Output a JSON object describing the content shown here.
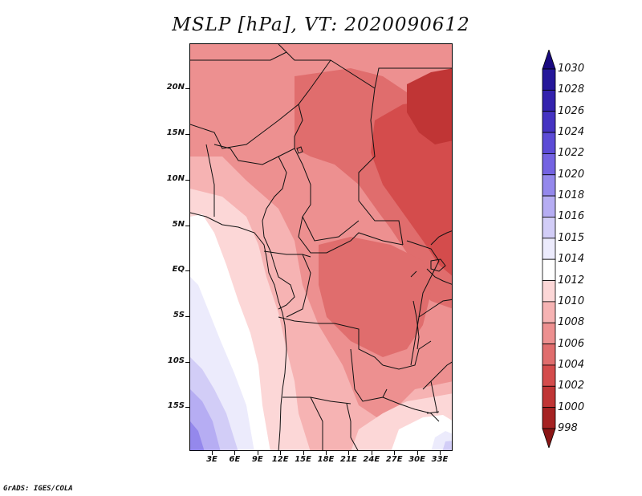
{
  "title": "MSLP [hPa], VT: 2020090612",
  "credit": "GrADS: IGES/COLA",
  "lat_ticks": [
    "20N",
    "15N",
    "10N",
    "5N",
    "EQ",
    "5S",
    "10S",
    "15S"
  ],
  "lon_ticks": [
    "3E",
    "6E",
    "9E",
    "12E",
    "15E",
    "18E",
    "21E",
    "24E",
    "27E",
    "30E",
    "33E"
  ],
  "colorbar": {
    "levels": [
      "1030",
      "1028",
      "1026",
      "1024",
      "1022",
      "1020",
      "1018",
      "1016",
      "1015",
      "1014",
      "1012",
      "1010",
      "1008",
      "1006",
      "1004",
      "1002",
      "1000",
      "998"
    ],
    "colors": [
      "#1a0a80",
      "#25179a",
      "#3322ae",
      "#4533c2",
      "#5c4bd6",
      "#7463e2",
      "#9488ec",
      "#b6adf3",
      "#d2cdf7",
      "#ecebfc",
      "#ffffff",
      "#fcd7d7",
      "#f6b3b3",
      "#ed9090",
      "#e06d6d",
      "#d44c4c",
      "#c03535",
      "#a52222",
      "#8a1515"
    ]
  },
  "field_colors": {
    "c998": "#a52222",
    "c1000": "#c03535",
    "c1002": "#d44c4c",
    "c1004": "#e06d6d",
    "c1006": "#ed9090",
    "c1008": "#f6b3b3",
    "c1010": "#fcd7d7",
    "c1012": "#ffffff",
    "c1014": "#ecebfc",
    "c1015": "#d2cdf7",
    "c1016": "#b6adf3",
    "c1018": "#9488ec"
  }
}
